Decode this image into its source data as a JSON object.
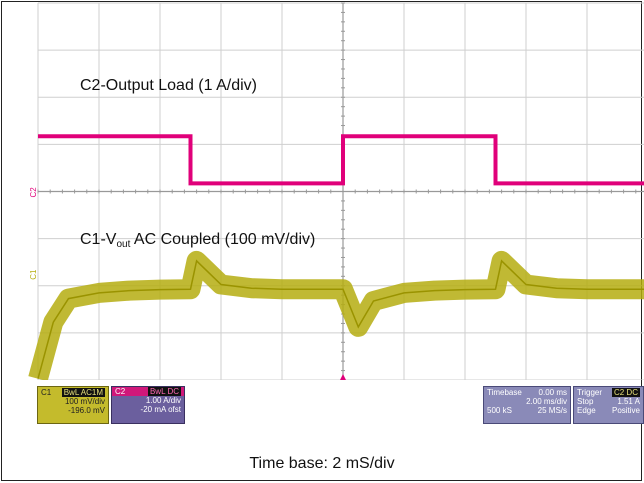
{
  "chart_data": {
    "type": "line",
    "title": "",
    "xlabel": "Time base: 2 mS/div",
    "ylabel": "",
    "x_unit": "ms",
    "xlim": [
      0,
      20
    ],
    "grid": true,
    "series": [
      {
        "name": "C2-Output Load (1 A/div)",
        "channel": "C2",
        "color": "#e0007a",
        "unit": "A",
        "x": [
          0,
          5,
          5,
          10,
          10,
          15,
          15,
          20
        ],
        "values": [
          1.3,
          1.3,
          0.3,
          0.3,
          1.3,
          1.3,
          0.3,
          0.3
        ]
      },
      {
        "name": "C1-Vout AC Coupled (100 mV/div)",
        "channel": "C1",
        "color": "#b5ad10",
        "unit": "mV",
        "x": [
          0,
          0.5,
          1,
          2,
          3,
          4,
          5,
          5.2,
          6,
          7,
          8,
          9,
          10,
          10.5,
          11,
          12,
          13,
          14,
          15,
          15.2,
          16,
          17,
          18,
          19,
          20
        ],
        "values": [
          -210,
          -90,
          -40,
          -28,
          -23,
          -21,
          -20,
          40,
          -10,
          -18,
          -20,
          -20,
          -20,
          -100,
          -45,
          -28,
          -23,
          -21,
          -20,
          40,
          -10,
          -18,
          -20,
          -20,
          -20
        ]
      }
    ],
    "annotations": [
      {
        "text_parts": [
          "C2-Output Load (1 A/div)"
        ]
      },
      {
        "text_parts": [
          "C1-V",
          "out",
          " AC Coupled (100 mV/div)"
        ]
      }
    ]
  },
  "channel_markers": {
    "c2": "C2",
    "c1": "C1"
  },
  "panels": {
    "c1": {
      "name": "C1",
      "tag": "BwL AC1M",
      "line1": "100 mV/div",
      "line2": "-196.0 mV"
    },
    "c2": {
      "name": "C2",
      "tag": "BwL DC",
      "line1": "1.00 A/div",
      "line2": "-20 mA ofst"
    },
    "timebase": {
      "label": "Timebase",
      "value": "0.00 ms",
      "div": "2.00 ms/div",
      "samples": "500 kS",
      "rate": "25 MS/s"
    },
    "trigger": {
      "label": "Trigger",
      "tag": "C2 DC",
      "stop": "Stop",
      "level": "1.51 A",
      "edge": "Edge",
      "slope": "Positive"
    }
  },
  "caption": "Time base: 2 mS/div"
}
